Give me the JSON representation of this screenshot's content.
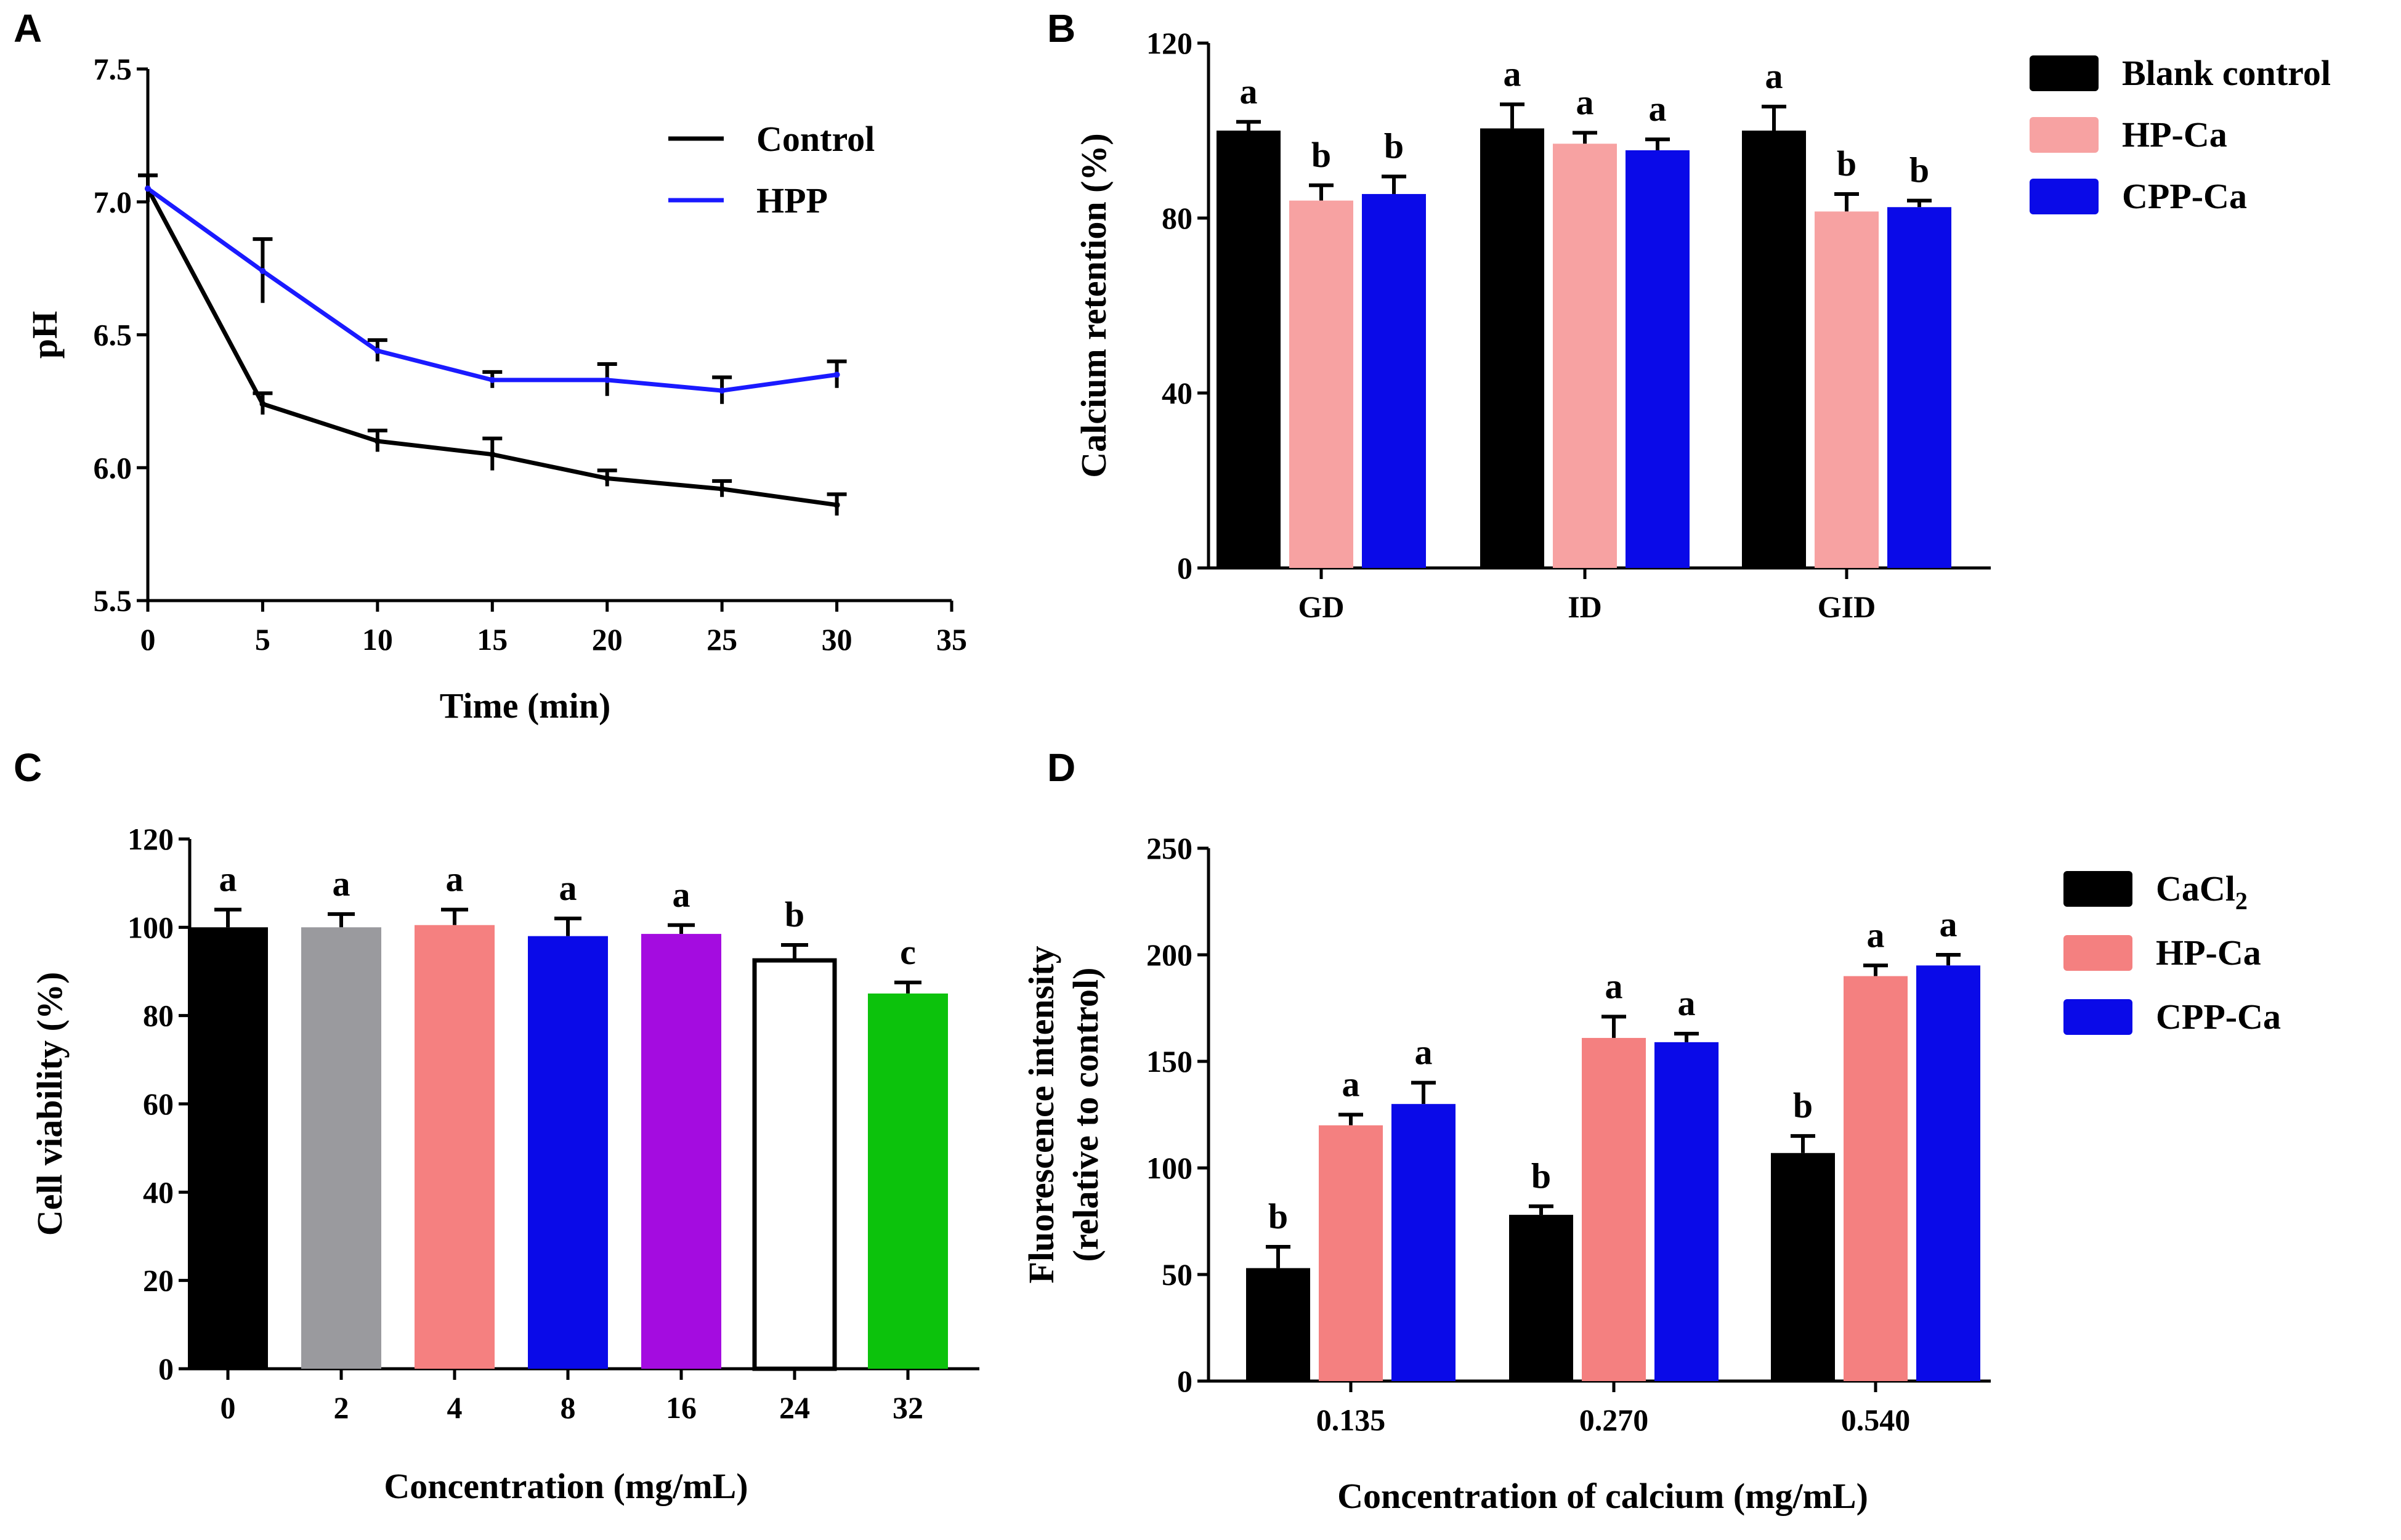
{
  "panels": {
    "A": "A",
    "B": "B",
    "C": "C",
    "D": "D"
  },
  "chart_data": [
    {
      "panel": "A",
      "type": "line",
      "xlabel": "Time (min)",
      "ylabel": "pH",
      "xlim": [
        0,
        35
      ],
      "ylim": [
        5.5,
        7.5
      ],
      "xticks": [
        "0",
        "5",
        "10",
        "15",
        "20",
        "25",
        "30",
        "35"
      ],
      "yticks": [
        "5.5",
        "6.0",
        "6.5",
        "7.0",
        "7.5"
      ],
      "x": [
        0,
        5,
        10,
        15,
        20,
        25,
        30
      ],
      "legend_position": "top-right",
      "series": [
        {
          "name": "Control",
          "color": "#000000",
          "values": [
            7.05,
            6.24,
            6.1,
            6.05,
            5.96,
            5.92,
            5.86
          ],
          "err": [
            0.05,
            0.04,
            0.04,
            0.06,
            0.03,
            0.03,
            0.04
          ]
        },
        {
          "name": "HPP",
          "color": "#1a1aff",
          "values": [
            7.05,
            6.74,
            6.44,
            6.33,
            6.33,
            6.29,
            6.35
          ],
          "err": [
            0.05,
            0.12,
            0.04,
            0.03,
            0.06,
            0.05,
            0.05
          ]
        }
      ]
    },
    {
      "panel": "B",
      "type": "bar",
      "xlabel": "",
      "ylabel": "Calcium retention (%)",
      "ylim": [
        0,
        120
      ],
      "yticks": [
        "0",
        "40",
        "80",
        "120"
      ],
      "categories": [
        "GD",
        "ID",
        "GID"
      ],
      "legend_position": "top-right",
      "series": [
        {
          "name": "Blank control",
          "color": "#000000",
          "values": [
            100,
            100.5,
            100
          ],
          "err": [
            2,
            5.5,
            5.5
          ],
          "sig": [
            "a",
            "a",
            "a"
          ]
        },
        {
          "name": "HP-Ca",
          "color": "#f7a2a2",
          "values": [
            84,
            97,
            81.5
          ],
          "err": [
            3.5,
            2.5,
            4
          ],
          "sig": [
            "b",
            "a",
            "b"
          ]
        },
        {
          "name": "CPP-Ca",
          "color": "#0a0ae8",
          "values": [
            85.5,
            95.5,
            82.5
          ],
          "err": [
            4,
            2.5,
            1.5
          ],
          "sig": [
            "b",
            "a",
            "b"
          ]
        }
      ]
    },
    {
      "panel": "C",
      "type": "bar",
      "xlabel": "Concentration (mg/mL)",
      "ylabel": "Cell viability (%)",
      "ylim": [
        0,
        120
      ],
      "yticks": [
        "0",
        "20",
        "40",
        "60",
        "80",
        "100",
        "120"
      ],
      "categories": [
        "0",
        "2",
        "4",
        "8",
        "16",
        "24",
        "32"
      ],
      "values": [
        100,
        100,
        100.5,
        98,
        98.5,
        92.5,
        85
      ],
      "err": [
        4,
        3,
        3.5,
        4,
        2,
        3.5,
        2.5
      ],
      "sig": [
        "a",
        "a",
        "a",
        "a",
        "a",
        "b",
        "c"
      ],
      "colors": [
        "#000000",
        "#9a9a9e",
        "#f58080",
        "#0a0ae8",
        "#a40ce0",
        "#ffffff",
        "#0cc20c"
      ]
    },
    {
      "panel": "D",
      "type": "bar",
      "xlabel": "Concentration of calcium (mg/mL)",
      "ylabel": "Fluorescence intensity",
      "ylabel2": "(relative to control)",
      "ylim": [
        0,
        250
      ],
      "yticks": [
        "0",
        "50",
        "100",
        "150",
        "200",
        "250"
      ],
      "categories": [
        "0.135",
        "0.270",
        "0.540"
      ],
      "legend_position": "top-right",
      "series": [
        {
          "name": "CaCl",
          "name_sub": "2",
          "color": "#000000",
          "values": [
            53,
            78,
            107
          ],
          "err": [
            10,
            4,
            8
          ],
          "sig": [
            "b",
            "b",
            "b"
          ]
        },
        {
          "name": "HP-Ca",
          "color": "#f48080",
          "values": [
            120,
            161,
            190
          ],
          "err": [
            5,
            10,
            5
          ],
          "sig": [
            "a",
            "a",
            "a"
          ]
        },
        {
          "name": "CPP-Ca",
          "color": "#0a0ae8",
          "values": [
            130,
            159,
            195
          ],
          "err": [
            10,
            4,
            5
          ],
          "sig": [
            "a",
            "a",
            "a"
          ]
        }
      ]
    }
  ]
}
